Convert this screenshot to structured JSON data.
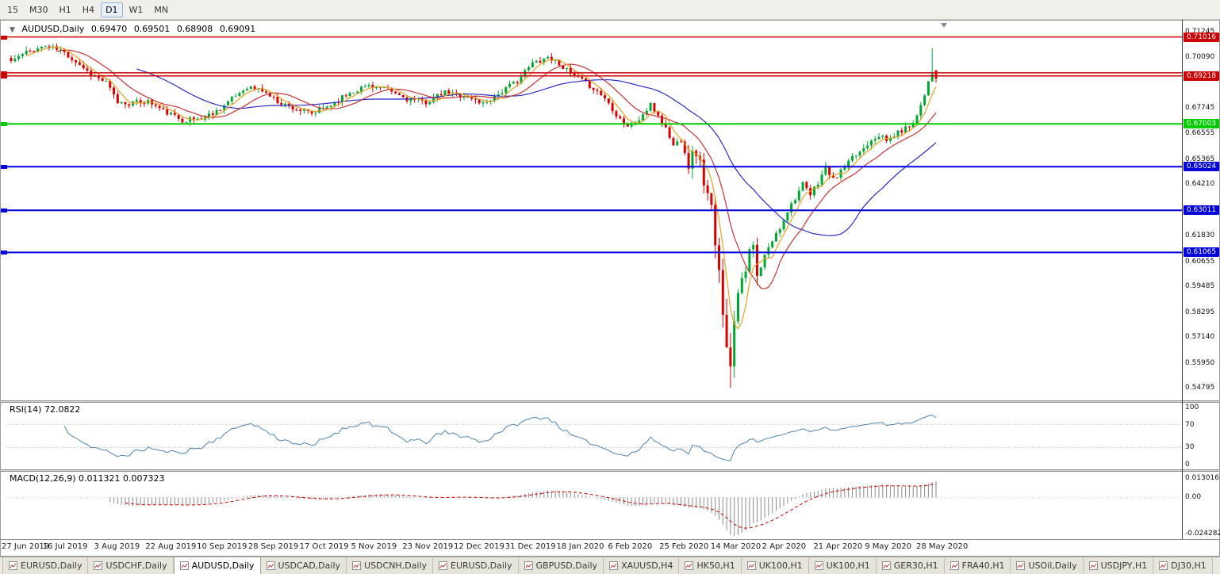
{
  "toolbar": {
    "timeframes": [
      "15",
      "M30",
      "H1",
      "H4",
      "D1",
      "W1",
      "MN"
    ],
    "active": "D1"
  },
  "header": {
    "collapse_icon": "▼",
    "symbol": "AUDUSD,Daily",
    "open": "0.69470",
    "high": "0.69501",
    "low": "0.68908",
    "close": "0.69091"
  },
  "price_axis": {
    "ticks": [
      "0.71245",
      "0.70090",
      "0.67745",
      "0.66555",
      "0.65365",
      "0.64210",
      "0.61830",
      "0.60655",
      "0.59485",
      "0.58295",
      "0.57140",
      "0.55950",
      "0.54795"
    ]
  },
  "hlines": [
    {
      "value": 0.71016,
      "label": "0.71016",
      "color": "#cc0000",
      "badge": true,
      "width": 1.5
    },
    {
      "value": 0.6936,
      "label": "0.69360",
      "color": "#cc0000",
      "badge": false,
      "width": 1.5
    },
    {
      "value": 0.69218,
      "label": "0.69218",
      "color": "#cc0000",
      "badge": true,
      "width": 1.5
    },
    {
      "value": 0.67003,
      "label": "0.67003",
      "color": "#00cc00",
      "badge": true,
      "width": 2
    },
    {
      "value": 0.65024,
      "label": "0.65024",
      "color": "#0000dd",
      "badge": true,
      "width": 2
    },
    {
      "value": 0.63011,
      "label": "0.63011",
      "color": "#0000dd",
      "badge": true,
      "width": 2
    },
    {
      "value": 0.61065,
      "label": "0.61065",
      "color": "#0000dd",
      "badge": true,
      "width": 2
    }
  ],
  "chart_data": {
    "type": "candlestick",
    "symbol": "AUDUSD",
    "timeframe": "Daily",
    "count": 244,
    "seed": 11,
    "price_scale": {
      "top": 0.717,
      "bottom": 0.543
    },
    "anchors": [
      [
        0,
        0.699
      ],
      [
        4,
        0.703
      ],
      [
        9,
        0.706
      ],
      [
        13,
        0.704
      ],
      [
        17,
        0.699
      ],
      [
        21,
        0.693
      ],
      [
        25,
        0.689
      ],
      [
        28,
        0.68
      ],
      [
        31,
        0.6795
      ],
      [
        36,
        0.6805
      ],
      [
        40,
        0.676
      ],
      [
        45,
        0.6718
      ],
      [
        50,
        0.6725
      ],
      [
        54,
        0.676
      ],
      [
        58,
        0.6815
      ],
      [
        62,
        0.6872
      ],
      [
        66,
        0.6855
      ],
      [
        70,
        0.6805
      ],
      [
        74,
        0.6775
      ],
      [
        79,
        0.6745
      ],
      [
        84,
        0.679
      ],
      [
        89,
        0.6845
      ],
      [
        94,
        0.688
      ],
      [
        99,
        0.6855
      ],
      [
        104,
        0.6815
      ],
      [
        109,
        0.68
      ],
      [
        114,
        0.6845
      ],
      [
        119,
        0.683
      ],
      [
        124,
        0.6795
      ],
      [
        129,
        0.685
      ],
      [
        133,
        0.69
      ],
      [
        137,
        0.698
      ],
      [
        141,
        0.701
      ],
      [
        144,
        0.698
      ],
      [
        147,
        0.693
      ],
      [
        150,
        0.69
      ],
      [
        153,
        0.6865
      ],
      [
        156,
        0.682
      ],
      [
        159,
        0.6745
      ],
      [
        162,
        0.669
      ],
      [
        165,
        0.672
      ],
      [
        168,
        0.6785
      ],
      [
        170,
        0.674
      ],
      [
        172,
        0.668
      ],
      [
        174,
        0.66
      ],
      [
        176,
        0.663
      ],
      [
        178,
        0.652
      ],
      [
        180,
        0.658
      ],
      [
        182,
        0.644
      ],
      [
        184,
        0.63
      ],
      [
        185,
        0.612
      ],
      [
        186,
        0.6
      ],
      [
        187,
        0.585
      ],
      [
        188,
        0.57
      ],
      [
        189,
        0.556
      ],
      [
        190,
        0.581
      ],
      [
        191,
        0.595
      ],
      [
        193,
        0.605
      ],
      [
        195,
        0.613
      ],
      [
        196,
        0.598
      ],
      [
        198,
        0.609
      ],
      [
        200,
        0.616
      ],
      [
        202,
        0.622
      ],
      [
        204,
        0.63
      ],
      [
        206,
        0.636
      ],
      [
        208,
        0.642
      ],
      [
        210,
        0.637
      ],
      [
        212,
        0.643
      ],
      [
        214,
        0.65
      ],
      [
        216,
        0.644
      ],
      [
        218,
        0.648
      ],
      [
        221,
        0.654
      ],
      [
        224,
        0.659
      ],
      [
        226,
        0.663
      ],
      [
        228,
        0.665
      ],
      [
        230,
        0.662
      ],
      [
        233,
        0.666
      ],
      [
        236,
        0.669
      ],
      [
        238,
        0.674
      ],
      [
        240,
        0.684
      ],
      [
        241,
        0.69
      ],
      [
        242,
        0.694
      ],
      [
        243,
        0.6947
      ]
    ],
    "overrides": {
      "189": {
        "low": 0.548
      },
      "242": {
        "high": 0.705
      },
      "243": {
        "open": 0.6947,
        "high": 0.69501,
        "low": 0.68908,
        "close": 0.69091
      }
    },
    "moving_averages": [
      {
        "period": 34,
        "color": "#2a2ac8"
      },
      {
        "period": 13,
        "color": "#c83232"
      },
      {
        "period": 5,
        "color": "#e8a020"
      }
    ],
    "last_ohlc": {
      "open": 0.6947,
      "high": 0.69501,
      "low": 0.68908,
      "close": 0.69091
    }
  },
  "rsi": {
    "label": "RSI(14) 72.0822",
    "period": 14,
    "current": 72.0822,
    "axis": [
      {
        "label": "100",
        "value": 100
      },
      {
        "label": "70",
        "value": 70
      },
      {
        "label": "30",
        "value": 30
      },
      {
        "label": "0",
        "value": 0
      }
    ],
    "guides": [
      70,
      30
    ],
    "color": "#4c84b0"
  },
  "macd": {
    "label": "MACD(12,26,9) 0.011321 0.007323",
    "fast": 12,
    "slow": 26,
    "signal": 9,
    "value": 0.011321,
    "signal_value": 0.007323,
    "axis": [
      {
        "label": "0.013016",
        "value": 0.013016
      },
      {
        "label": "0.00",
        "value": 0
      },
      {
        "label": "-0.024282",
        "value": -0.024282
      }
    ],
    "max": 0.013016,
    "min": -0.024282,
    "hist_color": "#8a8a8a",
    "signal_color": "#cc0000"
  },
  "dates": [
    "27 Jun 2019",
    "16 Jul 2019",
    "3 Aug 2019",
    "22 Aug 2019",
    "10 Sep 2019",
    "28 Sep 2019",
    "17 Oct 2019",
    "5 Nov 2019",
    "23 Nov 2019",
    "12 Dec 2019",
    "31 Dec 2019",
    "18 Jan 2020",
    "6 Feb 2020",
    "25 Feb 2020",
    "14 Mar 2020",
    "2 Apr 2020",
    "21 Apr 2020",
    "9 May 2020",
    "28 May 2020"
  ],
  "tabs": {
    "items": [
      "EURUSD,Daily",
      "USDCHF,Daily",
      "AUDUSD,Daily",
      "USDCAD,Daily",
      "USDCNH,Daily",
      "EURUSD,Daily",
      "GBPUSD,Daily",
      "XAUUSD,H4",
      "HK50,H1",
      "UK100,H1",
      "UK100,H1",
      "GER30,H1",
      "FRA40,H1",
      "USOil,Daily",
      "USDJPY,H1",
      "DJ30,H1"
    ],
    "active_index": 2
  },
  "colors": {
    "up": "#00a832",
    "down": "#d90000",
    "axis_line": "#3c3c3c",
    "splitter": "#d6d2ca"
  }
}
